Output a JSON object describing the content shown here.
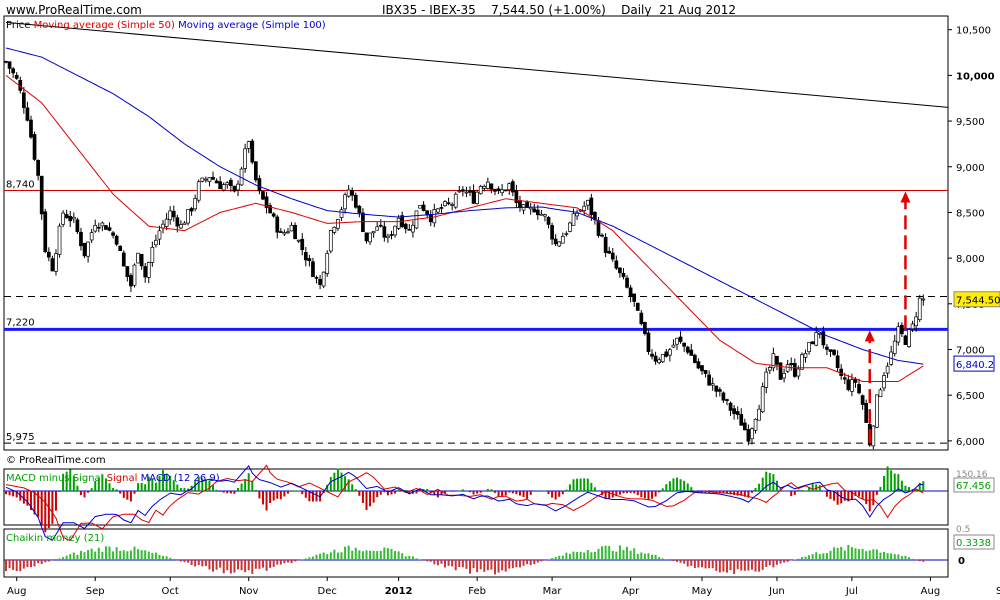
{
  "header": {
    "site": "www.ProRealTime.com",
    "symbol": "IBX35 - IBEX-35",
    "price_change": "7,544.50 (+1.00%)",
    "period": "Daily",
    "date": "21 Aug 2012"
  },
  "price_panel": {
    "legend_prefix": "Price",
    "legend_ma50": "Moving average (Simple 50)",
    "legend_ma100": "Moving average (Simple 100)",
    "watermark": "© ProRealTime.com",
    "level_labels": [
      "8,740",
      "7,220",
      "5,975"
    ],
    "last_price_label": "7,544.50",
    "ma_value_label": "6,840.2",
    "y_ticks": [
      {
        "v": 10500,
        "t": "10,500"
      },
      {
        "v": 10000,
        "t": "10,000"
      },
      {
        "v": 9500,
        "t": "9,500"
      },
      {
        "v": 9000,
        "t": "9,000"
      },
      {
        "v": 8500,
        "t": "8,500"
      },
      {
        "v": 8000,
        "t": "8,000"
      },
      {
        "v": 7500,
        "t": "7,500"
      },
      {
        "v": 7000,
        "t": "7,000"
      },
      {
        "v": 6500,
        "t": "6,500"
      },
      {
        "v": 6000,
        "t": "6,000"
      }
    ],
    "colors": {
      "ma50": "#dd0000",
      "ma100": "#0000cc",
      "support": "#1a1aff",
      "resistance": "#cc0000",
      "arrow": "#e00000",
      "up_candle": "#ffffff",
      "down_candle": "#000000"
    }
  },
  "macd_panel": {
    "legend_hist": "MACD minus Signal",
    "legend_signal": "Signal",
    "legend_macd": "MACD (12 26 9)",
    "value_label": "67.456",
    "top_label": "150.16"
  },
  "chaikin_panel": {
    "legend": "Chaikin money (21)",
    "value_label": "0.3338",
    "zero_label": "0",
    "top_label": "0.5"
  },
  "x_axis": {
    "labels": [
      {
        "t": "Aug",
        "i": 3
      },
      {
        "t": "Sep",
        "i": 25
      },
      {
        "t": "Oct",
        "i": 46
      },
      {
        "t": "Nov",
        "i": 68
      },
      {
        "t": "Dec",
        "i": 90
      },
      {
        "t": "2012",
        "i": 110
      },
      {
        "t": "Feb",
        "i": 132
      },
      {
        "t": "Mar",
        "i": 153
      },
      {
        "t": "Apr",
        "i": 175
      },
      {
        "t": "May",
        "i": 195
      },
      {
        "t": "Jun",
        "i": 216
      },
      {
        "t": "Jul",
        "i": 237
      },
      {
        "t": "Aug",
        "i": 259
      },
      {
        "t": "Sep",
        "i": 280
      }
    ]
  },
  "chart_data": {
    "type": "candlestick",
    "title": "IBX35 - IBEX-35 7,544.50 (+1.00%) Daily 21 Aug 2012",
    "ylim": [
      5900,
      10650
    ],
    "close_anchors": [
      [
        0,
        10150
      ],
      [
        3,
        9950
      ],
      [
        6,
        9550
      ],
      [
        9,
        8900
      ],
      [
        11,
        8100
      ],
      [
        13,
        7900
      ],
      [
        16,
        8500
      ],
      [
        19,
        8400
      ],
      [
        22,
        8050
      ],
      [
        25,
        8400
      ],
      [
        28,
        8350
      ],
      [
        31,
        8200
      ],
      [
        33,
        7900
      ],
      [
        35,
        7700
      ],
      [
        37,
        8100
      ],
      [
        39,
        7800
      ],
      [
        41,
        8100
      ],
      [
        43,
        8300
      ],
      [
        46,
        8500
      ],
      [
        49,
        8350
      ],
      [
        52,
        8550
      ],
      [
        54,
        8800
      ],
      [
        57,
        8900
      ],
      [
        60,
        8800
      ],
      [
        62,
        8800
      ],
      [
        64,
        8700
      ],
      [
        66,
        9000
      ],
      [
        68,
        9300
      ],
      [
        69,
        9000
      ],
      [
        71,
        8700
      ],
      [
        74,
        8500
      ],
      [
        77,
        8250
      ],
      [
        80,
        8350
      ],
      [
        83,
        8100
      ],
      [
        86,
        7850
      ],
      [
        88,
        7700
      ],
      [
        89,
        7900
      ],
      [
        91,
        8300
      ],
      [
        94,
        8550
      ],
      [
        96,
        8750
      ],
      [
        98,
        8600
      ],
      [
        101,
        8200
      ],
      [
        104,
        8350
      ],
      [
        107,
        8200
      ],
      [
        110,
        8450
      ],
      [
        113,
        8300
      ],
      [
        116,
        8600
      ],
      [
        119,
        8450
      ],
      [
        122,
        8550
      ],
      [
        125,
        8600
      ],
      [
        128,
        8750
      ],
      [
        131,
        8650
      ],
      [
        133,
        8800
      ],
      [
        135,
        8850
      ],
      [
        138,
        8700
      ],
      [
        141,
        8800
      ],
      [
        143,
        8600
      ],
      [
        146,
        8500
      ],
      [
        148,
        8550
      ],
      [
        151,
        8450
      ],
      [
        154,
        8150
      ],
      [
        157,
        8300
      ],
      [
        160,
        8500
      ],
      [
        163,
        8600
      ],
      [
        165,
        8400
      ],
      [
        168,
        8100
      ],
      [
        170,
        7950
      ],
      [
        173,
        7750
      ],
      [
        176,
        7500
      ],
      [
        178,
        7250
      ],
      [
        180,
        7000
      ],
      [
        182,
        6900
      ],
      [
        185,
        6950
      ],
      [
        188,
        7100
      ],
      [
        191,
        7000
      ],
      [
        194,
        6800
      ],
      [
        197,
        6650
      ],
      [
        200,
        6500
      ],
      [
        203,
        6350
      ],
      [
        206,
        6200
      ],
      [
        208,
        6050
      ],
      [
        211,
        6400
      ],
      [
        213,
        6700
      ],
      [
        215,
        6900
      ],
      [
        217,
        6700
      ],
      [
        219,
        6850
      ],
      [
        221,
        6750
      ],
      [
        223,
        6900
      ],
      [
        226,
        7100
      ],
      [
        228,
        7200
      ],
      [
        230,
        6950
      ],
      [
        232,
        6900
      ],
      [
        234,
        6700
      ],
      [
        236,
        6600
      ],
      [
        238,
        6650
      ],
      [
        240,
        6400
      ],
      [
        242,
        5980
      ],
      [
        244,
        6450
      ],
      [
        246,
        6750
      ],
      [
        248,
        6950
      ],
      [
        250,
        7200
      ],
      [
        252,
        7100
      ],
      [
        254,
        7250
      ],
      [
        256,
        7544
      ]
    ],
    "ma50_anchors": [
      [
        0,
        10000
      ],
      [
        10,
        9700
      ],
      [
        20,
        9200
      ],
      [
        30,
        8700
      ],
      [
        40,
        8350
      ],
      [
        50,
        8300
      ],
      [
        60,
        8500
      ],
      [
        70,
        8600
      ],
      [
        80,
        8500
      ],
      [
        90,
        8380
      ],
      [
        100,
        8400
      ],
      [
        110,
        8400
      ],
      [
        120,
        8450
      ],
      [
        130,
        8550
      ],
      [
        140,
        8650
      ],
      [
        150,
        8600
      ],
      [
        160,
        8550
      ],
      [
        170,
        8300
      ],
      [
        180,
        7900
      ],
      [
        190,
        7500
      ],
      [
        200,
        7100
      ],
      [
        210,
        6850
      ],
      [
        220,
        6800
      ],
      [
        230,
        6800
      ],
      [
        240,
        6650
      ],
      [
        250,
        6650
      ],
      [
        257,
        6820
      ]
    ],
    "ma100_anchors": [
      [
        0,
        10300
      ],
      [
        10,
        10200
      ],
      [
        20,
        10000
      ],
      [
        30,
        9800
      ],
      [
        40,
        9550
      ],
      [
        50,
        9250
      ],
      [
        60,
        9000
      ],
      [
        70,
        8800
      ],
      [
        80,
        8650
      ],
      [
        90,
        8520
      ],
      [
        100,
        8480
      ],
      [
        110,
        8450
      ],
      [
        120,
        8480
      ],
      [
        130,
        8520
      ],
      [
        140,
        8550
      ],
      [
        150,
        8560
      ],
      [
        160,
        8500
      ],
      [
        170,
        8350
      ],
      [
        180,
        8150
      ],
      [
        190,
        7950
      ],
      [
        200,
        7750
      ],
      [
        210,
        7550
      ],
      [
        220,
        7350
      ],
      [
        230,
        7150
      ],
      [
        240,
        7000
      ],
      [
        250,
        6880
      ],
      [
        257,
        6840
      ]
    ],
    "trendline": {
      "from": [
        0,
        10580
      ],
      "to": [
        270,
        9650
      ]
    },
    "resistance_level": 8740,
    "support_level": 7220,
    "floor_level": 5975,
    "dashed_level": 7580,
    "arrows": [
      {
        "i": 242,
        "from": 5975,
        "to": 7220
      },
      {
        "i": 252,
        "from": 7220,
        "to": 8740
      }
    ]
  }
}
